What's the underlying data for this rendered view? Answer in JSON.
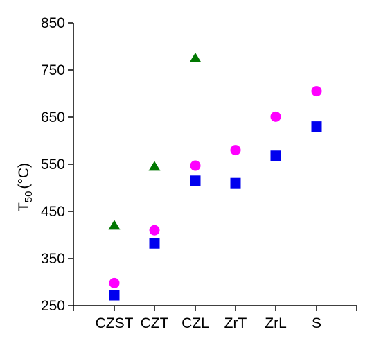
{
  "chart_data": {
    "type": "scatter",
    "categories": [
      "CZST",
      "CZT",
      "CZL",
      "ZrT",
      "ZrL",
      "S"
    ],
    "ylabel": {
      "main": "T",
      "sub": "50",
      "unit": "(°C)"
    },
    "xlabel": "",
    "ylim": [
      250,
      850
    ],
    "yticks": [
      250,
      350,
      450,
      550,
      650,
      750,
      850
    ],
    "grid": false,
    "legend": "none",
    "series": [
      {
        "marker": "square",
        "color": "#0000ee",
        "values": [
          272,
          382,
          515,
          510,
          568,
          630
        ]
      },
      {
        "marker": "circle",
        "color": "#ff00ff",
        "values": [
          298,
          410,
          547,
          580,
          651,
          705
        ]
      },
      {
        "marker": "triangle",
        "color": "#007700",
        "values": [
          420,
          545,
          775,
          null,
          null,
          null
        ]
      }
    ]
  }
}
